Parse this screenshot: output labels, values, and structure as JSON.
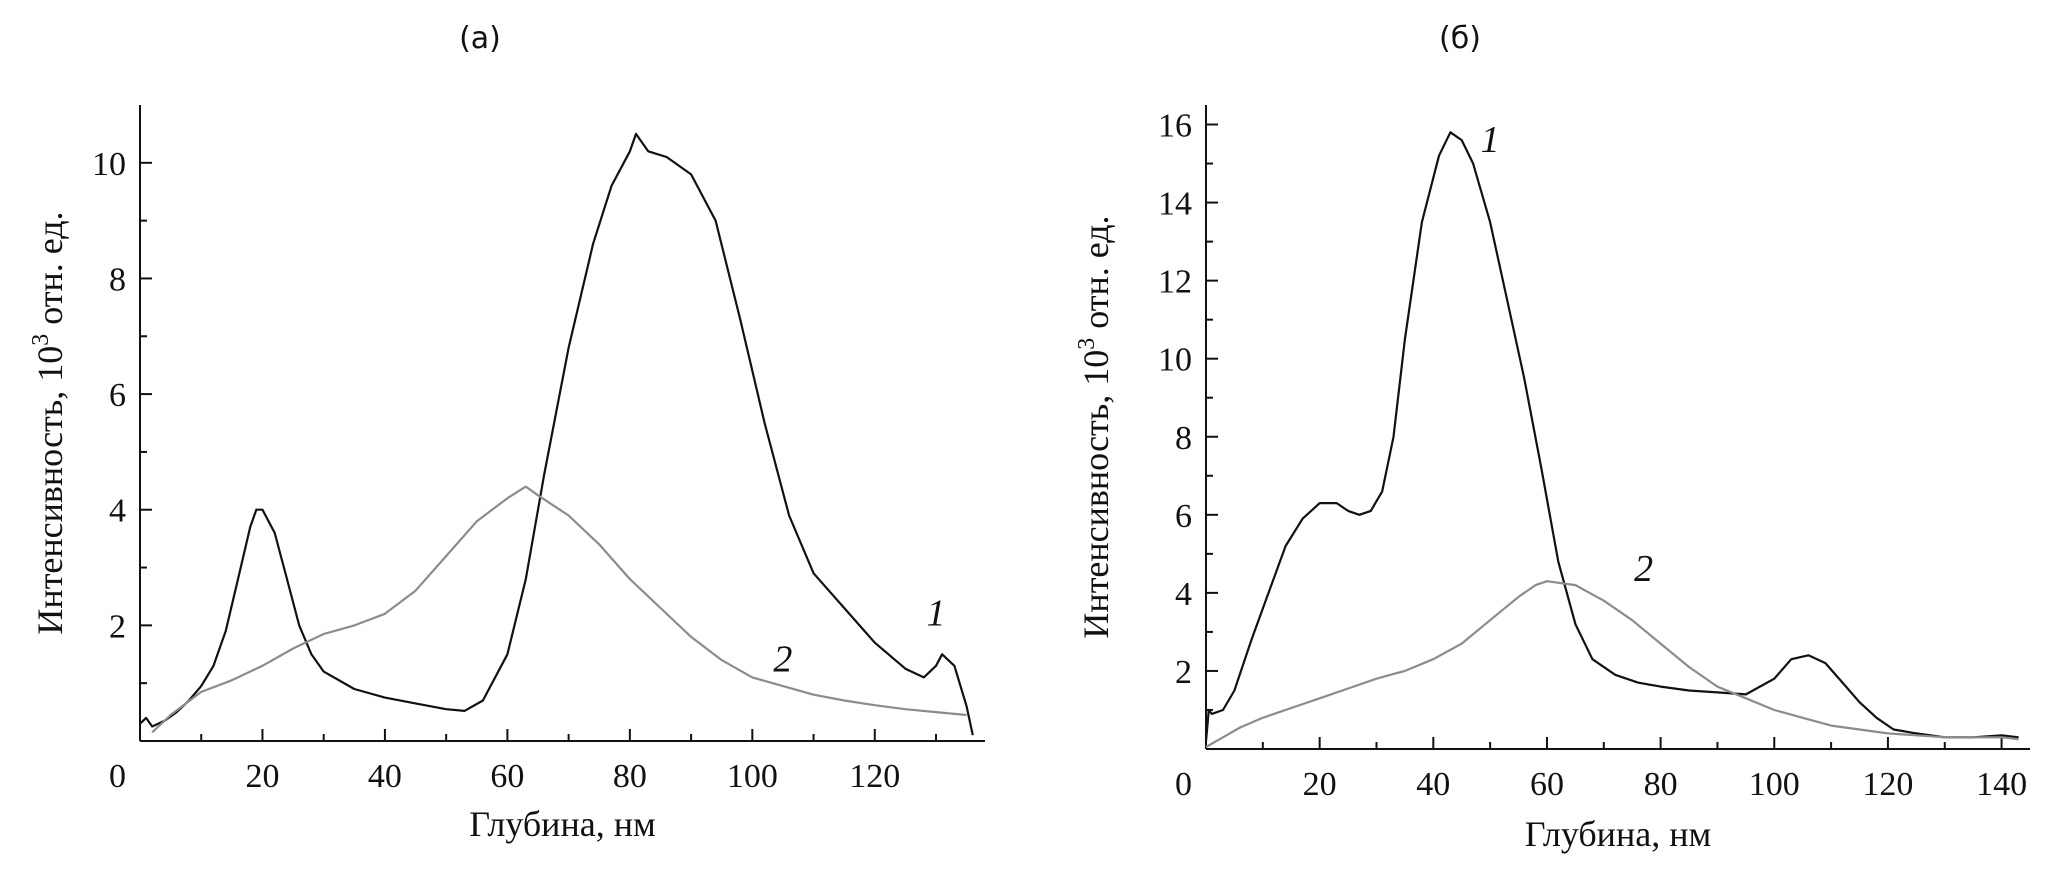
{
  "chart_data": [
    {
      "type": "line",
      "panel_label": "(а)",
      "xlabel": "Глубина, нм",
      "ylabel": "Интенсивность, 10",
      "ylabel_exponent": "3",
      "ylabel_suffix": " отн. ед.",
      "xlim": [
        0,
        138
      ],
      "ylim": [
        0,
        11
      ],
      "x_ticks": [
        0,
        20,
        40,
        60,
        80,
        100,
        120
      ],
      "y_ticks": [
        2,
        4,
        6,
        8,
        10
      ],
      "origin_label": "0",
      "grid": false,
      "series": [
        {
          "label": "1",
          "color": "#111111",
          "label_at": [
            130,
            2.0
          ],
          "points": [
            [
              0,
              0.3
            ],
            [
              1,
              0.4
            ],
            [
              2,
              0.25
            ],
            [
              4,
              0.35
            ],
            [
              6,
              0.5
            ],
            [
              8,
              0.7
            ],
            [
              10,
              0.95
            ],
            [
              12,
              1.3
            ],
            [
              14,
              1.9
            ],
            [
              16,
              2.8
            ],
            [
              18,
              3.7
            ],
            [
              19,
              4.0
            ],
            [
              20,
              4.0
            ],
            [
              22,
              3.6
            ],
            [
              24,
              2.8
            ],
            [
              26,
              2.0
            ],
            [
              28,
              1.5
            ],
            [
              30,
              1.2
            ],
            [
              35,
              0.9
            ],
            [
              40,
              0.75
            ],
            [
              45,
              0.65
            ],
            [
              50,
              0.55
            ],
            [
              53,
              0.52
            ],
            [
              56,
              0.7
            ],
            [
              60,
              1.5
            ],
            [
              63,
              2.8
            ],
            [
              66,
              4.6
            ],
            [
              70,
              6.8
            ],
            [
              74,
              8.6
            ],
            [
              77,
              9.6
            ],
            [
              80,
              10.2
            ],
            [
              81,
              10.5
            ],
            [
              83,
              10.2
            ],
            [
              86,
              10.1
            ],
            [
              90,
              9.8
            ],
            [
              94,
              9.0
            ],
            [
              98,
              7.3
            ],
            [
              102,
              5.5
            ],
            [
              106,
              3.9
            ],
            [
              110,
              2.9
            ],
            [
              115,
              2.3
            ],
            [
              120,
              1.7
            ],
            [
              125,
              1.25
            ],
            [
              128,
              1.1
            ],
            [
              130,
              1.3
            ],
            [
              131,
              1.5
            ],
            [
              133,
              1.3
            ],
            [
              135,
              0.6
            ],
            [
              136,
              0.1
            ]
          ]
        },
        {
          "label": "2",
          "color": "#8c8c8c",
          "label_at": [
            105,
            1.2
          ],
          "points": [
            [
              2,
              0.15
            ],
            [
              5,
              0.45
            ],
            [
              10,
              0.85
            ],
            [
              15,
              1.05
            ],
            [
              20,
              1.3
            ],
            [
              25,
              1.6
            ],
            [
              30,
              1.85
            ],
            [
              35,
              2.0
            ],
            [
              40,
              2.2
            ],
            [
              45,
              2.6
            ],
            [
              50,
              3.2
            ],
            [
              55,
              3.8
            ],
            [
              60,
              4.2
            ],
            [
              63,
              4.4
            ],
            [
              65,
              4.25
            ],
            [
              70,
              3.9
            ],
            [
              75,
              3.4
            ],
            [
              80,
              2.8
            ],
            [
              85,
              2.3
            ],
            [
              90,
              1.8
            ],
            [
              95,
              1.4
            ],
            [
              100,
              1.1
            ],
            [
              105,
              0.95
            ],
            [
              110,
              0.8
            ],
            [
              115,
              0.7
            ],
            [
              120,
              0.62
            ],
            [
              125,
              0.55
            ],
            [
              130,
              0.5
            ],
            [
              135,
              0.45
            ]
          ]
        }
      ]
    },
    {
      "type": "line",
      "panel_label": "(б)",
      "xlabel": "Глубина, нм",
      "ylabel": "Интенсивность, 10",
      "ylabel_exponent": "3",
      "ylabel_suffix": " отн. ед.",
      "xlim": [
        0,
        145
      ],
      "ylim": [
        0,
        16.5
      ],
      "x_ticks": [
        20,
        40,
        60,
        80,
        100,
        120,
        140
      ],
      "y_ticks": [
        2,
        4,
        6,
        8,
        10,
        12,
        14,
        16
      ],
      "origin_label": "0",
      "grid": false,
      "series": [
        {
          "label": "1",
          "color": "#111111",
          "label_at": [
            50,
            15.3
          ],
          "points": [
            [
              0,
              0.2
            ],
            [
              0.5,
              1.0
            ],
            [
              1,
              0.9
            ],
            [
              3,
              1.0
            ],
            [
              5,
              1.5
            ],
            [
              8,
              2.8
            ],
            [
              11,
              4.0
            ],
            [
              14,
              5.2
            ],
            [
              17,
              5.9
            ],
            [
              20,
              6.3
            ],
            [
              23,
              6.3
            ],
            [
              25,
              6.1
            ],
            [
              27,
              6.0
            ],
            [
              29,
              6.1
            ],
            [
              31,
              6.6
            ],
            [
              33,
              8.0
            ],
            [
              35,
              10.5
            ],
            [
              38,
              13.5
            ],
            [
              41,
              15.2
            ],
            [
              43,
              15.8
            ],
            [
              45,
              15.6
            ],
            [
              47,
              15.0
            ],
            [
              50,
              13.5
            ],
            [
              53,
              11.5
            ],
            [
              56,
              9.5
            ],
            [
              59,
              7.2
            ],
            [
              62,
              4.8
            ],
            [
              65,
              3.2
            ],
            [
              68,
              2.3
            ],
            [
              72,
              1.9
            ],
            [
              76,
              1.7
            ],
            [
              80,
              1.6
            ],
            [
              85,
              1.5
            ],
            [
              90,
              1.45
            ],
            [
              95,
              1.4
            ],
            [
              100,
              1.8
            ],
            [
              103,
              2.3
            ],
            [
              106,
              2.4
            ],
            [
              109,
              2.2
            ],
            [
              112,
              1.7
            ],
            [
              115,
              1.2
            ],
            [
              118,
              0.8
            ],
            [
              121,
              0.5
            ],
            [
              125,
              0.4
            ],
            [
              130,
              0.3
            ],
            [
              135,
              0.3
            ],
            [
              140,
              0.35
            ],
            [
              143,
              0.3
            ]
          ]
        },
        {
          "label": "2",
          "color": "#8c8c8c",
          "label_at": [
            77,
            4.3
          ],
          "points": [
            [
              0,
              0.05
            ],
            [
              3,
              0.3
            ],
            [
              6,
              0.55
            ],
            [
              10,
              0.8
            ],
            [
              15,
              1.05
            ],
            [
              20,
              1.3
            ],
            [
              25,
              1.55
            ],
            [
              30,
              1.8
            ],
            [
              35,
              2.0
            ],
            [
              40,
              2.3
            ],
            [
              45,
              2.7
            ],
            [
              50,
              3.3
            ],
            [
              55,
              3.9
            ],
            [
              58,
              4.2
            ],
            [
              60,
              4.3
            ],
            [
              65,
              4.2
            ],
            [
              70,
              3.8
            ],
            [
              75,
              3.3
            ],
            [
              80,
              2.7
            ],
            [
              85,
              2.1
            ],
            [
              90,
              1.6
            ],
            [
              95,
              1.3
            ],
            [
              100,
              1.0
            ],
            [
              105,
              0.8
            ],
            [
              110,
              0.6
            ],
            [
              115,
              0.5
            ],
            [
              120,
              0.4
            ],
            [
              125,
              0.35
            ],
            [
              130,
              0.3
            ],
            [
              135,
              0.3
            ],
            [
              140,
              0.3
            ],
            [
              143,
              0.25
            ]
          ]
        }
      ]
    }
  ]
}
